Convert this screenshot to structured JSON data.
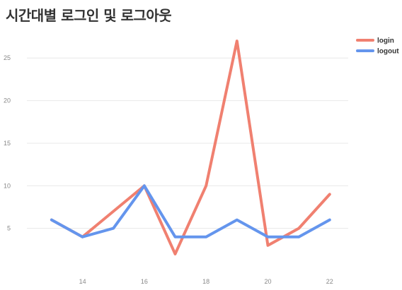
{
  "chart_data": {
    "type": "line",
    "title": "시간대별 로그인 및 로그아웃",
    "xlabel": "",
    "ylabel": "",
    "x": [
      13,
      14,
      15,
      16,
      17,
      18,
      19,
      20,
      21,
      22
    ],
    "x_ticks": [
      14,
      16,
      18,
      20,
      22
    ],
    "y_ticks": [
      5,
      10,
      15,
      20,
      25
    ],
    "xlim": [
      12.2,
      22.6
    ],
    "ylim": [
      0,
      28.5
    ],
    "grid": "horizontal",
    "legend_position": "top-right",
    "series": [
      {
        "name": "login",
        "color": "#f08070",
        "values": [
          6,
          4,
          7,
          10,
          2,
          10,
          27,
          3,
          5,
          9
        ]
      },
      {
        "name": "logout",
        "color": "#6495ed",
        "values": [
          6,
          4,
          5,
          10,
          4,
          4,
          6,
          4,
          4,
          6
        ]
      }
    ]
  }
}
